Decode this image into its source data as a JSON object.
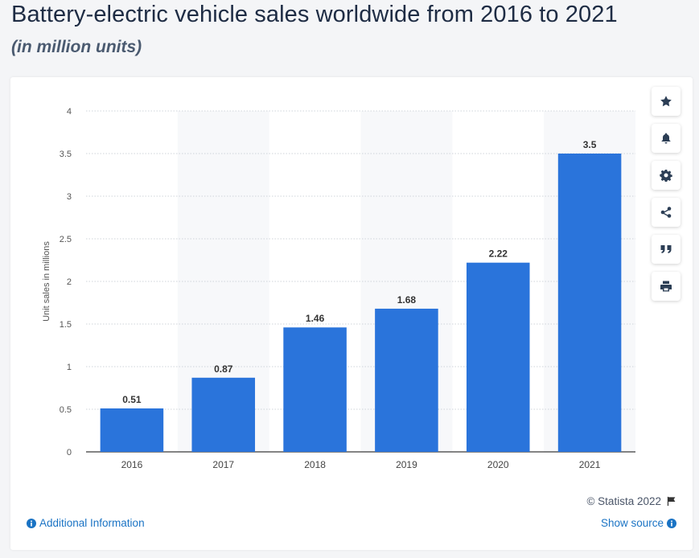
{
  "header": {
    "title": "Battery-electric vehicle sales worldwide from 2016 to 2021",
    "subtitle": "(in million units)"
  },
  "colors": {
    "bar": "#2a74db",
    "band": "#f7f8fa",
    "grid": "#cfd4da"
  },
  "toolbar": {
    "icons": [
      "star-icon",
      "bell-icon",
      "gear-icon",
      "share-icon",
      "quote-icon",
      "print-icon"
    ]
  },
  "footer": {
    "credit": "© Statista 2022",
    "additional_info": "Additional Information",
    "show_source": "Show source"
  },
  "chart_data": {
    "type": "bar",
    "categories": [
      "2016",
      "2017",
      "2018",
      "2019",
      "2020",
      "2021"
    ],
    "values": [
      0.51,
      0.87,
      1.46,
      1.68,
      2.22,
      3.5
    ],
    "value_labels": [
      "0.51",
      "0.87",
      "1.46",
      "1.68",
      "2.22",
      "3.5"
    ],
    "ylabel": "Unit sales in millions",
    "ylim": [
      0,
      4
    ],
    "yticks": [
      0,
      0.5,
      1,
      1.5,
      2,
      2.5,
      3,
      3.5,
      4
    ],
    "ytick_labels": [
      "0",
      "0.5",
      "1",
      "1.5",
      "2",
      "2.5",
      "3",
      "3.5",
      "4"
    ],
    "grid": true,
    "legend": "none"
  }
}
